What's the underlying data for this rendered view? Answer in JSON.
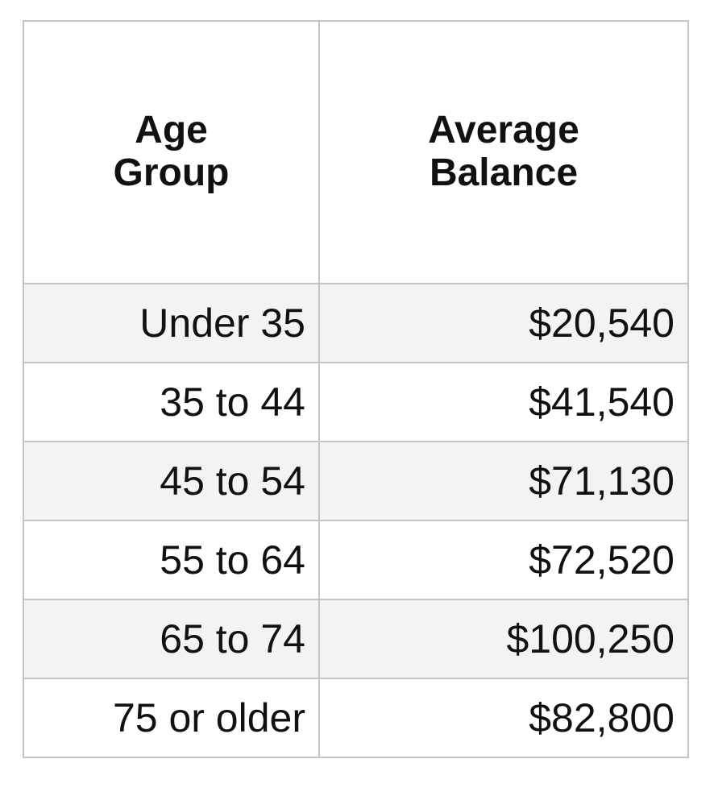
{
  "table": {
    "headers": [
      [
        "Age",
        "Group"
      ],
      [
        "Average",
        "Balance"
      ]
    ],
    "rows": [
      {
        "age": "Under 35",
        "balance": "$20,540"
      },
      {
        "age": "35 to 44",
        "balance": "$41,540"
      },
      {
        "age": "45 to 54",
        "balance": "$71,130"
      },
      {
        "age": "55 to 64",
        "balance": "$72,520"
      },
      {
        "age": "65 to 74",
        "balance": "$100,250"
      },
      {
        "age": "75 or older",
        "balance": "$82,800"
      }
    ],
    "colors": {
      "border": "#c4c4c4",
      "stripe": "#f3f3f3"
    }
  }
}
